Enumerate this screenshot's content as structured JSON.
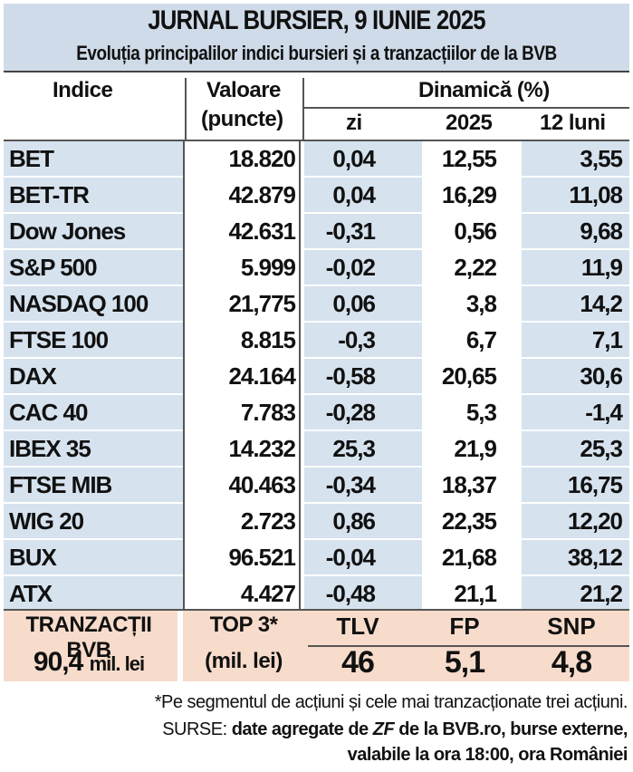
{
  "header": {
    "title": "JURNAL BURSIER, 9 IUNIE 2025",
    "subtitle": "Evoluția principalilor indici bursieri și a tranzacțiilor de la BVB"
  },
  "columns": {
    "index": "Indice",
    "value_line1": "Valoare",
    "value_line2": "(puncte)",
    "dynamics": "Dinamică (%)",
    "day": "zi",
    "year": "2025",
    "months12": "12 luni"
  },
  "rows": [
    {
      "name": "BET",
      "value": "18.820",
      "day": "0,04",
      "year": "12,55",
      "m12": "3,55"
    },
    {
      "name": "BET-TR",
      "value": "42.879",
      "day": "0,04",
      "year": "16,29",
      "m12": "11,08"
    },
    {
      "name": "Dow Jones",
      "value": "42.631",
      "day": "-0,31",
      "year": "0,56",
      "m12": "9,68"
    },
    {
      "name": "S&P 500",
      "value": "5.999",
      "day": "-0,02",
      "year": "2,22",
      "m12": "11,9"
    },
    {
      "name": "NASDAQ 100",
      "value": "21,775",
      "day": "0,06",
      "year": "3,8",
      "m12": "14,2"
    },
    {
      "name": "FTSE 100",
      "value": "8.815",
      "day": "-0,3",
      "year": "6,7",
      "m12": "7,1"
    },
    {
      "name": "DAX",
      "value": "24.164",
      "day": "-0,58",
      "year": "20,65",
      "m12": "30,6"
    },
    {
      "name": "CAC 40",
      "value": "7.783",
      "day": "-0,28",
      "year": "5,3",
      "m12": "-1,4"
    },
    {
      "name": "IBEX 35",
      "value": "14.232",
      "day": "25,3",
      "year": "21,9",
      "m12": "25,3"
    },
    {
      "name": "FTSE MIB",
      "value": "40.463",
      "day": "-0,34",
      "year": "18,37",
      "m12": "16,75"
    },
    {
      "name": "WIG 20",
      "value": "2.723",
      "day": "0,86",
      "year": "22,35",
      "m12": "12,20"
    },
    {
      "name": "BUX",
      "value": "96.521",
      "day": "-0,04",
      "year": "21,68",
      "m12": "38,12"
    },
    {
      "name": "ATX",
      "value": "4.427",
      "day": "-0,48",
      "year": "21,1",
      "m12": "21,2"
    }
  ],
  "bvb": {
    "label": "TRANZACȚII BVB",
    "amount": "90,4",
    "unit": "mil. lei",
    "top3_line1": "TOP 3*",
    "top3_line2": "(mil. lei)",
    "tickers": [
      {
        "symbol": "TLV",
        "value": "46"
      },
      {
        "symbol": "FP",
        "value": "5,1"
      },
      {
        "symbol": "SNP",
        "value": "4,8"
      }
    ]
  },
  "footer": {
    "note": "*Pe segmentul de acțiuni și cele mai tranzacționate trei acțiuni.",
    "sources_label": "SURSE:",
    "sources_text": "date agregate de",
    "sources_zf": "ZF",
    "sources_rest": "de la BVB.ro, burse externe,",
    "valid": "valabile la ora 18:00, ora României"
  }
}
